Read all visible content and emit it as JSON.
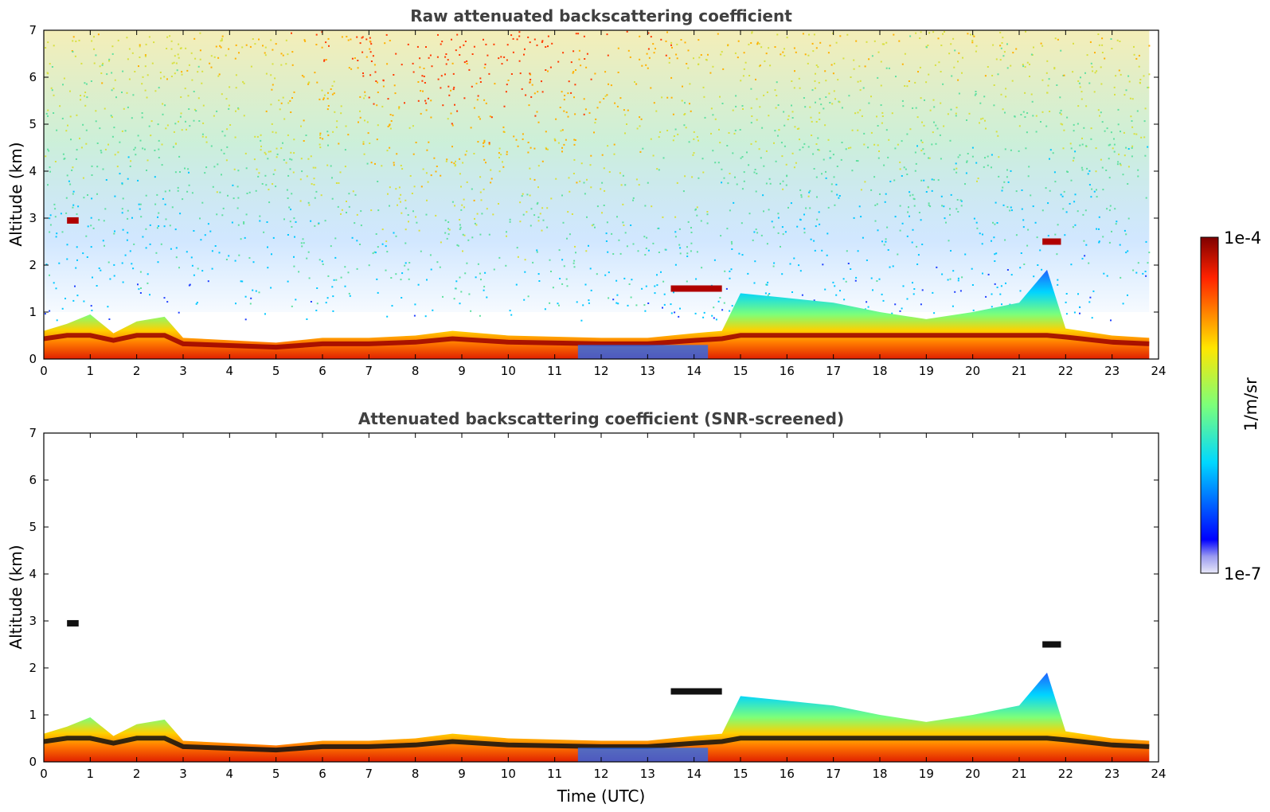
{
  "chart_data": [
    {
      "type": "heatmap",
      "title": "Raw attenuated backscattering coefficient",
      "xlabel": "",
      "ylabel": "Altitude (km)",
      "xlim": [
        0,
        24
      ],
      "ylim": [
        0,
        7
      ],
      "xticks": [
        "0",
        "1",
        "2",
        "3",
        "4",
        "5",
        "6",
        "7",
        "8",
        "9",
        "10",
        "11",
        "12",
        "13",
        "14",
        "15",
        "16",
        "17",
        "18",
        "19",
        "20",
        "21",
        "22",
        "23",
        "24"
      ],
      "yticks": [
        "0",
        "1",
        "2",
        "3",
        "4",
        "5",
        "6",
        "7"
      ],
      "data_end_time": 23.8,
      "features": {
        "boundary_layer_top_km": [
          [
            0,
            0.6
          ],
          [
            0.5,
            0.75
          ],
          [
            1,
            0.95
          ],
          [
            1.5,
            0.55
          ],
          [
            2,
            0.8
          ],
          [
            2.6,
            0.9
          ],
          [
            3,
            0.45
          ],
          [
            4,
            0.4
          ],
          [
            5,
            0.35
          ],
          [
            6,
            0.45
          ],
          [
            7,
            0.45
          ],
          [
            8,
            0.5
          ],
          [
            8.8,
            0.6
          ],
          [
            10,
            0.5
          ],
          [
            12,
            0.45
          ],
          [
            13,
            0.45
          ],
          [
            14,
            0.55
          ],
          [
            14.6,
            0.6
          ],
          [
            15,
            1.4
          ],
          [
            16,
            1.3
          ],
          [
            17,
            1.2
          ],
          [
            18,
            1.0
          ],
          [
            19,
            0.85
          ],
          [
            20,
            1.0
          ],
          [
            21,
            1.2
          ],
          [
            21.6,
            1.9
          ],
          [
            22,
            0.65
          ],
          [
            23,
            0.5
          ],
          [
            23.8,
            0.45
          ]
        ],
        "elevated_layers": [
          {
            "t_start": 0.5,
            "t_end": 0.75,
            "alt_km": 2.95
          },
          {
            "t_start": 13.5,
            "t_end": 14.6,
            "alt_km": 1.5
          },
          {
            "t_start": 21.5,
            "t_end": 21.9,
            "alt_km": 2.5
          }
        ]
      }
    },
    {
      "type": "heatmap",
      "title": "Attenuated backscattering coefficient (SNR-screened)",
      "xlabel": "Time (UTC)",
      "ylabel": "Altitude (km)",
      "xlim": [
        0,
        24
      ],
      "ylim": [
        0,
        7
      ],
      "xticks": [
        "0",
        "1",
        "2",
        "3",
        "4",
        "5",
        "6",
        "7",
        "8",
        "9",
        "10",
        "11",
        "12",
        "13",
        "14",
        "15",
        "16",
        "17",
        "18",
        "19",
        "20",
        "21",
        "22",
        "23",
        "24"
      ],
      "yticks": [
        "0",
        "1",
        "2",
        "3",
        "4",
        "5",
        "6",
        "7"
      ],
      "data_end_time": 23.8
    }
  ],
  "colorbar": {
    "label": "1/m/sr",
    "max_label": "1e-4",
    "min_label": "1e-7",
    "scale": "log",
    "range": [
      1e-07,
      0.0001
    ],
    "colormap": "jet"
  }
}
